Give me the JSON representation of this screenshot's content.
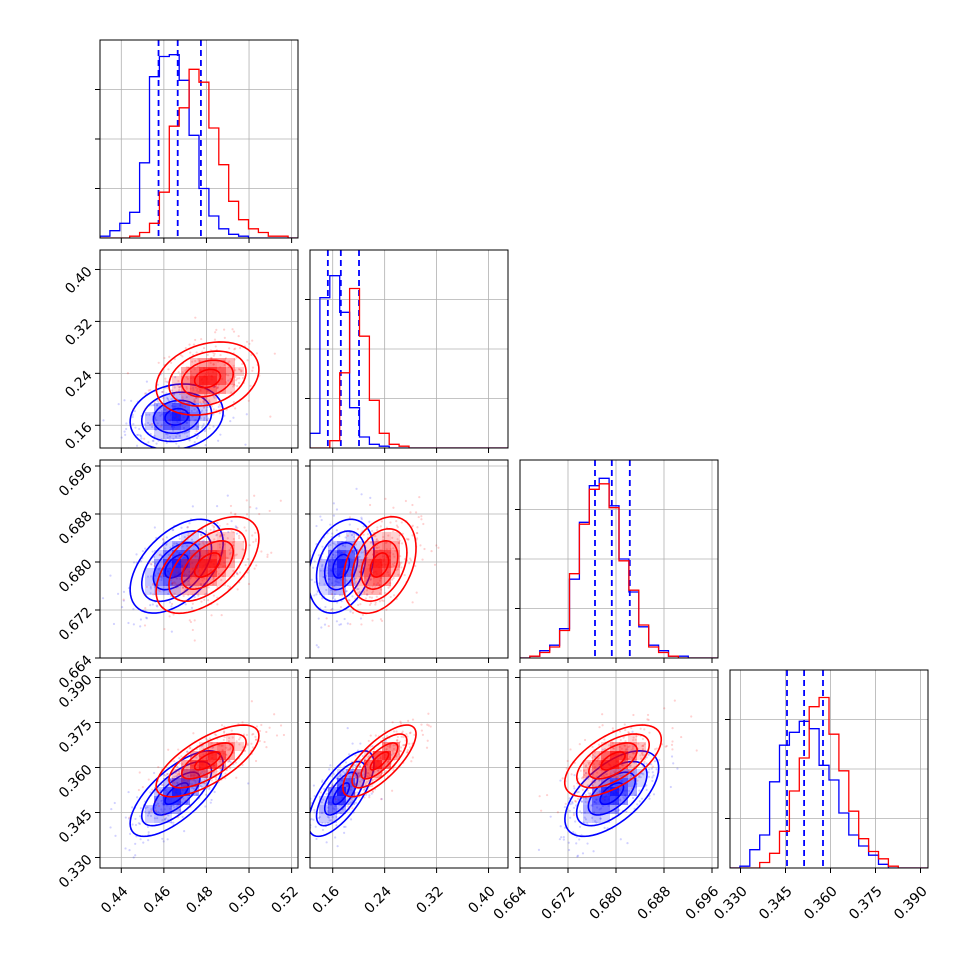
{
  "chart_data": {
    "type": "corner",
    "parameters": [
      {
        "ticks": [
          "0.44",
          "0.46",
          "0.48",
          "0.50",
          "0.52"
        ],
        "range": [
          0.43,
          0.523
        ]
      },
      {
        "ticks": [
          "0.16",
          "0.24",
          "0.32",
          "0.40"
        ],
        "range": [
          0.125,
          0.43
        ]
      },
      {
        "ticks": [
          "0.664",
          "0.672",
          "0.680",
          "0.688",
          "0.696"
        ],
        "range": [
          0.664,
          0.697
        ]
      },
      {
        "ticks": [
          "0.330",
          "0.345",
          "0.360",
          "0.375",
          "0.390"
        ],
        "range": [
          0.3265,
          0.3925
        ]
      }
    ],
    "series": [
      {
        "color": "#0000ff",
        "histograms": [
          {
            "edges_start": 0.43,
            "bin_width": 0.00465,
            "counts": [
              0.01,
              0.04,
              0.08,
              0.14,
              0.41,
              0.88,
              0.99,
              1.0,
              0.86,
              0.56,
              0.27,
              0.12,
              0.05,
              0.02,
              0.01,
              0,
              0,
              0,
              0,
              0
            ]
          },
          {
            "edges_start": 0.125,
            "bin_width": 0.01525,
            "counts": [
              0.08,
              0.82,
              0.94,
              0.74,
              0.22,
              0.06,
              0.02,
              0.01,
              0,
              0,
              0,
              0,
              0,
              0,
              0,
              0,
              0,
              0,
              0,
              0
            ]
          },
          {
            "edges_start": 0.664,
            "bin_width": 0.00165,
            "counts": [
              0,
              0.01,
              0.04,
              0.07,
              0.16,
              0.43,
              0.74,
              0.94,
              0.98,
              0.83,
              0.54,
              0.36,
              0.17,
              0.07,
              0.04,
              0.01,
              0.01,
              0,
              0,
              0
            ]
          },
          {
            "edges_start": 0.3265,
            "bin_width": 0.0033,
            "counts": [
              0,
              0.01,
              0.1,
              0.18,
              0.47,
              0.67,
              0.74,
              0.8,
              0.76,
              0.56,
              0.48,
              0.3,
              0.18,
              0.12,
              0.07,
              0.02,
              0,
              0,
              0,
              0
            ]
          }
        ],
        "quantiles": [
          [
            0.4575,
            0.4665,
            0.4774
          ],
          [
            0.1525,
            0.1725,
            0.2005
          ],
          [
            0.6765,
            0.6793,
            0.6823
          ],
          [
            0.3455,
            0.3512,
            0.3575
          ]
        ],
        "means": [
          0.466,
          0.173,
          0.6793,
          0.3513
        ],
        "sds": [
          0.0095,
          0.022,
          0.0034,
          0.0062
        ],
        "correlations": [
          [
            1,
            0.15,
            0.5,
            0.7
          ],
          [
            0.15,
            1,
            0.3,
            0.7
          ],
          [
            0.5,
            0.3,
            1,
            0.6
          ],
          [
            0.7,
            0.7,
            0.6,
            1
          ]
        ]
      },
      {
        "color": "#ff0000",
        "histograms": [
          {
            "edges_start": 0.43,
            "bin_width": 0.00465,
            "counts": [
              0,
              0,
              0,
              0.01,
              0.03,
              0.08,
              0.25,
              0.61,
              0.71,
              0.92,
              0.85,
              0.6,
              0.4,
              0.2,
              0.1,
              0.05,
              0.03,
              0.01,
              0.01,
              0
            ]
          },
          {
            "edges_start": 0.125,
            "bin_width": 0.01525,
            "counts": [
              0,
              0,
              0.04,
              0.41,
              0.87,
              0.61,
              0.26,
              0.08,
              0.02,
              0.01,
              0,
              0,
              0,
              0,
              0,
              0,
              0,
              0,
              0,
              0
            ]
          },
          {
            "edges_start": 0.664,
            "bin_width": 0.00165,
            "counts": [
              0,
              0.01,
              0.03,
              0.06,
              0.15,
              0.46,
              0.73,
              0.92,
              0.95,
              0.82,
              0.53,
              0.37,
              0.18,
              0.06,
              0.03,
              0.01,
              0,
              0,
              0,
              0
            ]
          },
          {
            "edges_start": 0.3265,
            "bin_width": 0.0033,
            "counts": [
              0,
              0,
              0,
              0.03,
              0.08,
              0.2,
              0.42,
              0.6,
              0.88,
              0.93,
              0.73,
              0.53,
              0.31,
              0.16,
              0.09,
              0.05,
              0.01,
              0,
              0,
              0
            ]
          }
        ],
        "means": [
          0.4805,
          0.232,
          0.6795,
          0.3622
        ],
        "sds": [
          0.0105,
          0.0245,
          0.0035,
          0.0052
        ],
        "correlations": [
          [
            1,
            0.25,
            0.55,
            0.7
          ],
          [
            0.25,
            1,
            0.35,
            0.75
          ],
          [
            0.55,
            0.35,
            1,
            0.6
          ],
          [
            0.7,
            0.75,
            0.6,
            1
          ]
        ]
      }
    ],
    "contour_sigma_levels": [
      0.5,
      1.0,
      1.5,
      2.0
    ],
    "grid": true,
    "scatter_points_per_panel": 260
  }
}
